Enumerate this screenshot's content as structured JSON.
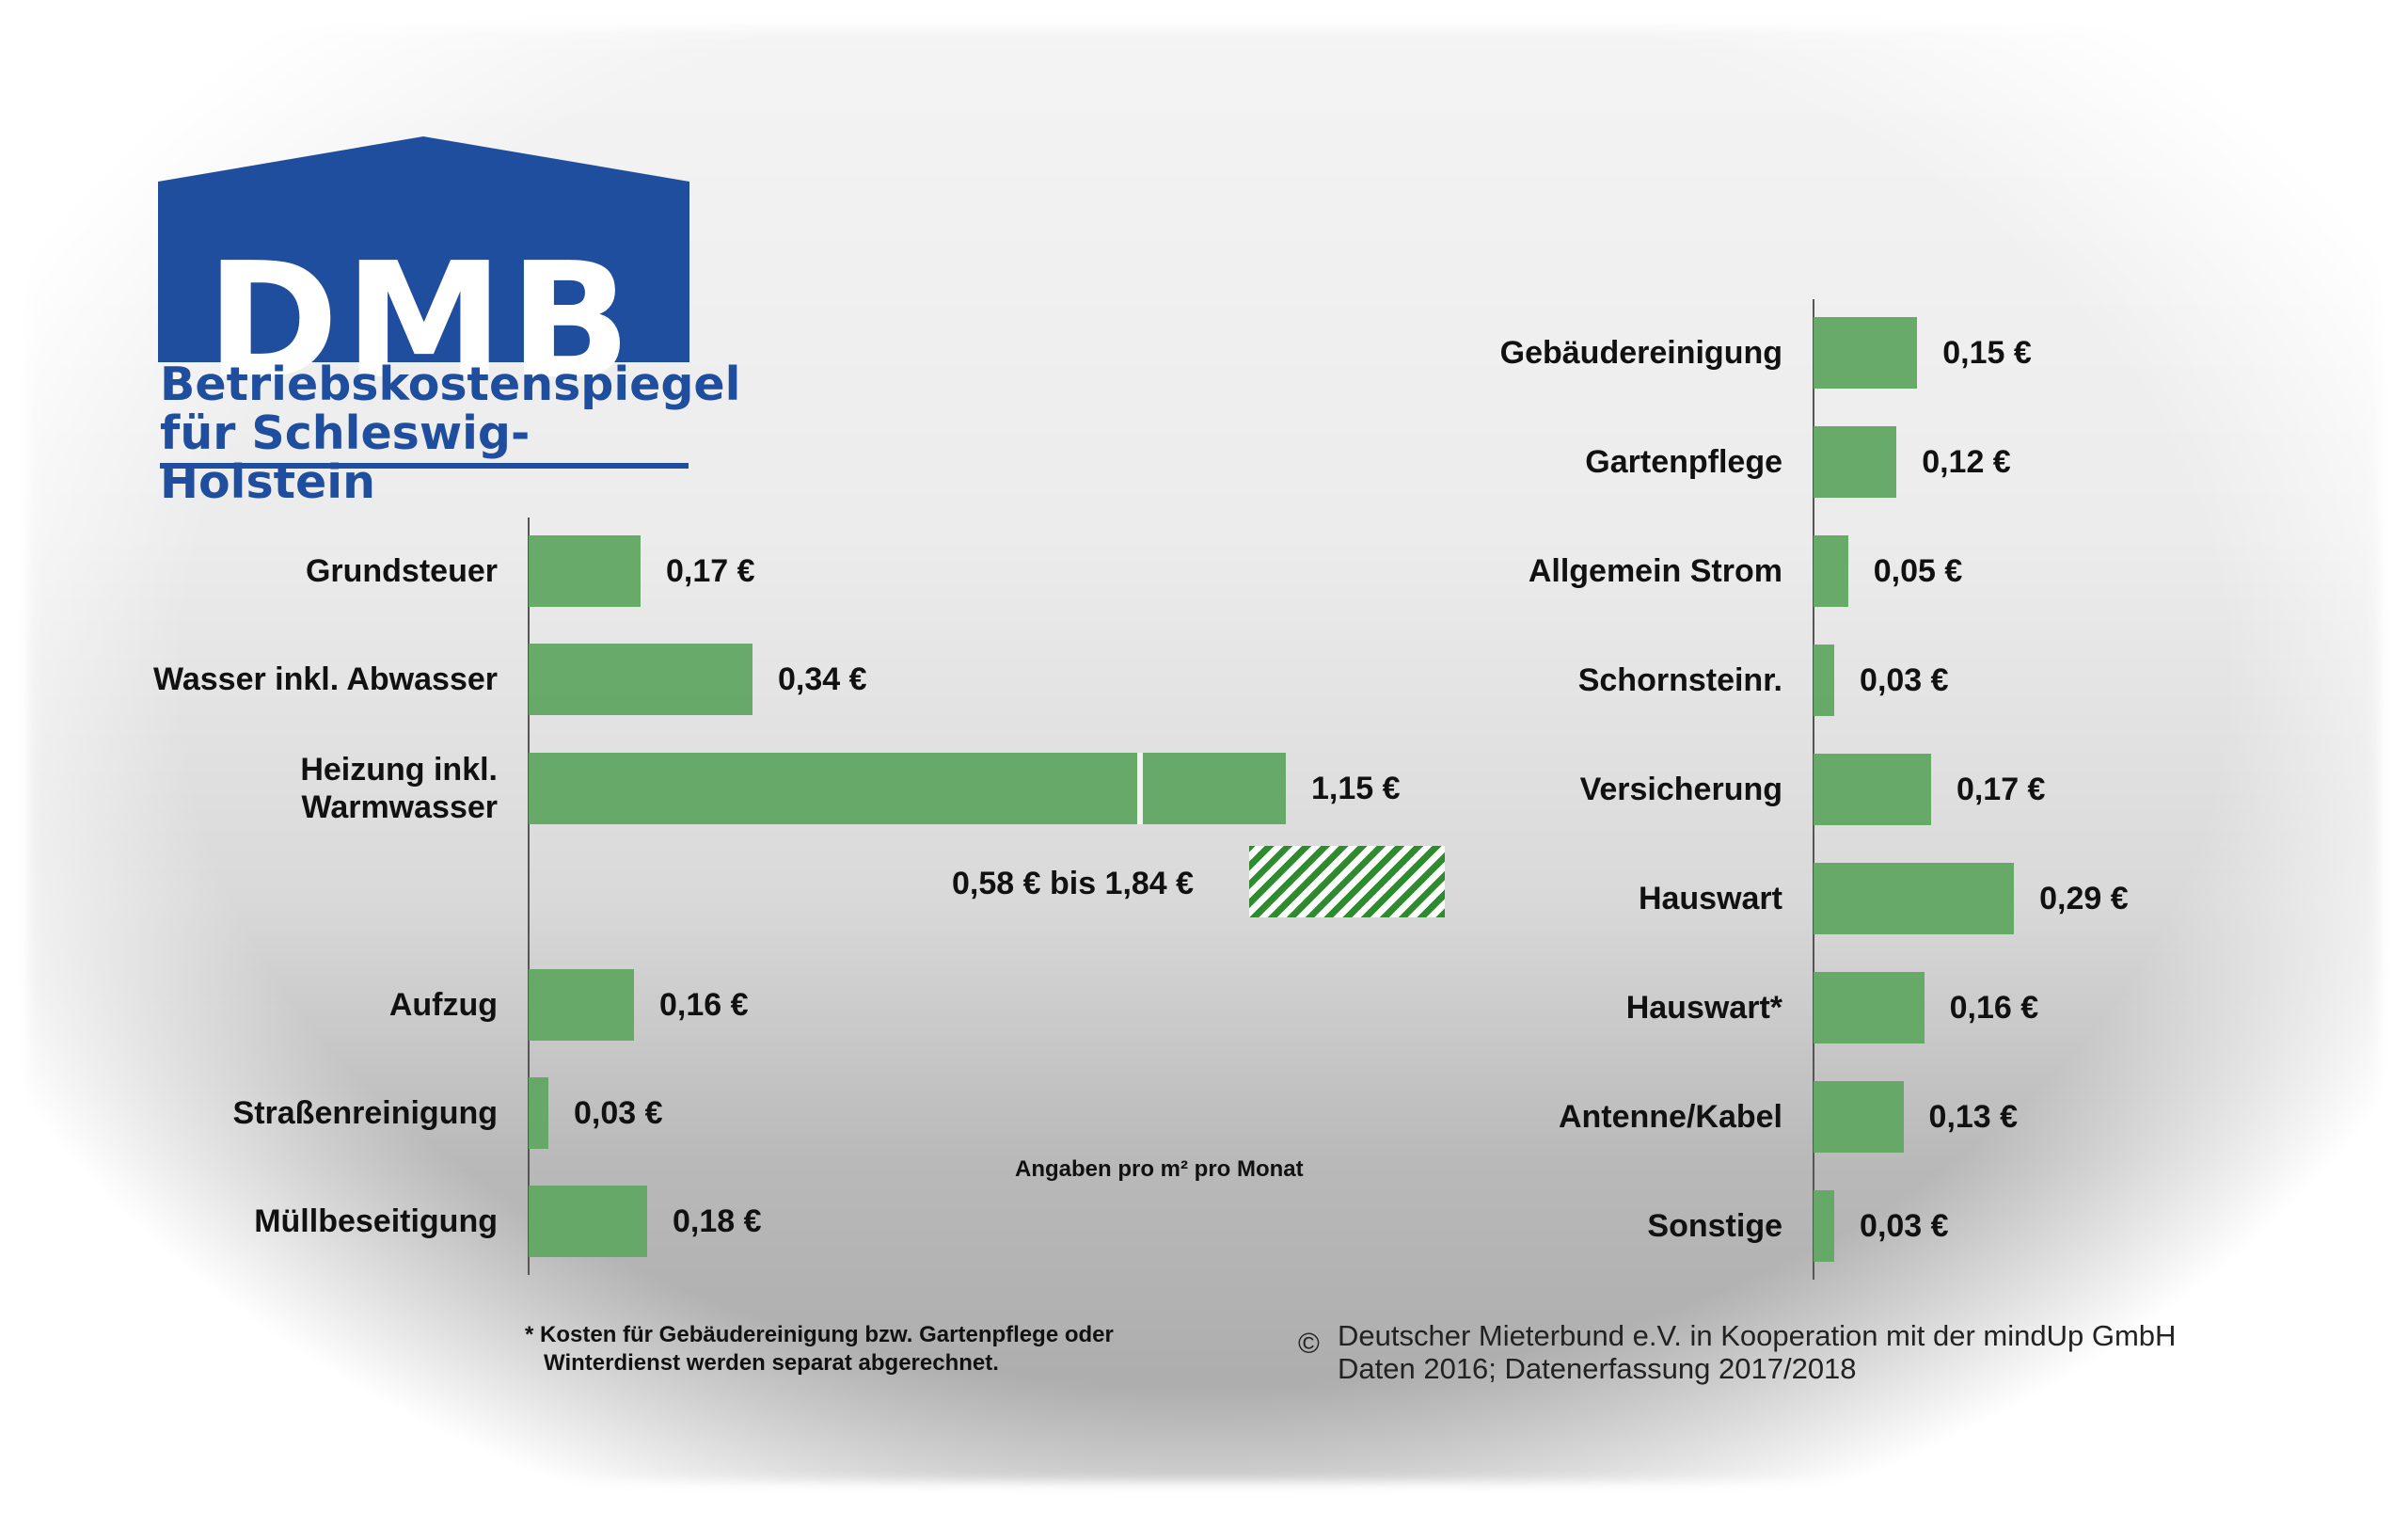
{
  "logo": {
    "mark_text": "DMB",
    "subtitle_line1": "Betriebskostenspiegel",
    "subtitle_line2": "für Schleswig-Holstein",
    "color": "#1f4e9e"
  },
  "colors": {
    "bar": "#62a765",
    "hatch": "#2e8b2e"
  },
  "chart_data": [
    {
      "type": "bar",
      "orientation": "horizontal",
      "unit": "€",
      "categories": [
        "Grundsteuer",
        "Wasser inkl. Abwasser",
        "Heizung inkl. Warmwasser",
        "Aufzug",
        "Straßenreinigung",
        "Müllbeseitigung"
      ],
      "values": [
        0.17,
        0.34,
        1.15,
        0.16,
        0.03,
        0.18
      ],
      "value_labels": [
        "0,17 €",
        "0,34 €",
        "1,15 €",
        "0,16 €",
        "0,03 €",
        "0,18 €"
      ],
      "range_annotation": {
        "label": "0,58 € bis 1,84 €",
        "min": 0.58,
        "max": 1.84
      }
    },
    {
      "type": "bar",
      "orientation": "horizontal",
      "unit": "€",
      "categories": [
        "Gebäudereinigung",
        "Gartenpflege",
        "Allgemein Strom",
        "Schornsteinr.",
        "Versicherung",
        "Hauswart",
        "Hauswart*",
        "Antenne/Kabel",
        "Sonstige"
      ],
      "values": [
        0.15,
        0.12,
        0.05,
        0.03,
        0.17,
        0.29,
        0.16,
        0.13,
        0.03
      ],
      "value_labels": [
        "0,15 €",
        "0,12 €",
        "0,05 €",
        "0,03 €",
        "0,17 €",
        "0,29 €",
        "0,16 €",
        "0,13 €",
        "0,03 €"
      ]
    }
  ],
  "units_note": "Angaben pro m² pro Monat",
  "footnote": "* Kosten für Gebäudereinigung bzw. Gartenpflege oder\n   Winterdienst werden separat abgerechnet.",
  "copyright": {
    "symbol": "©",
    "line1": "Deutscher Mieterbund e.V. in Kooperation mit der mindUp GmbH",
    "line2": "Daten 2016; Datenerfassung 2017/2018"
  }
}
